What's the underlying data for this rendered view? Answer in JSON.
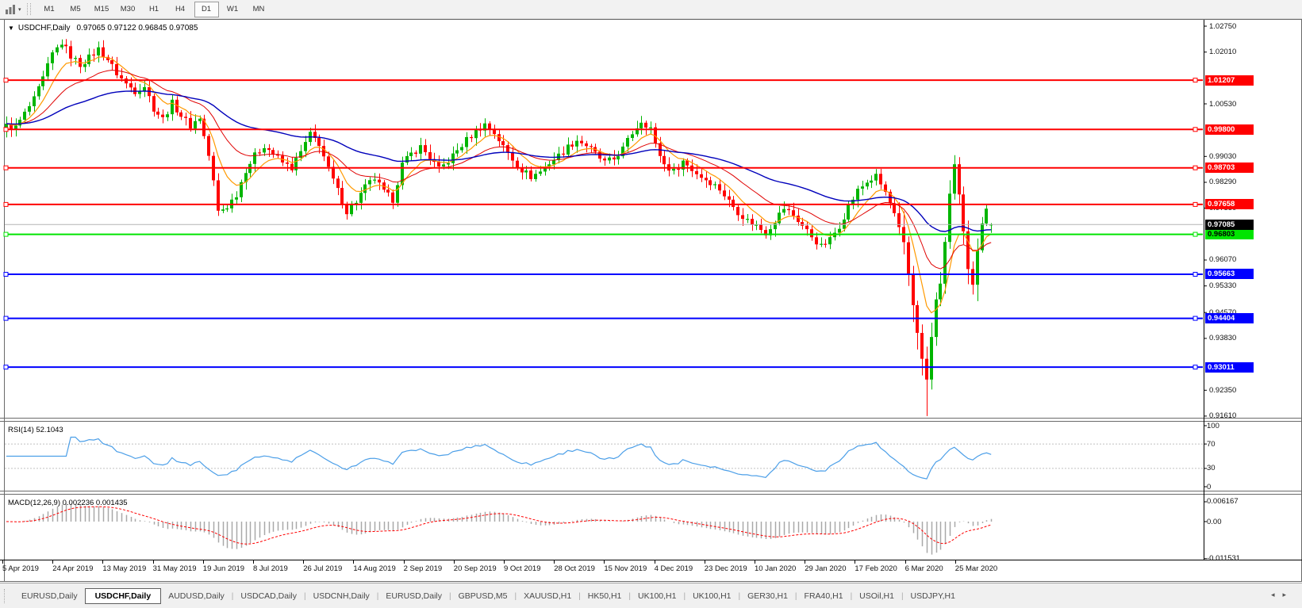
{
  "toolbar": {
    "periods": [
      "M1",
      "M5",
      "M15",
      "M30",
      "H1",
      "H4",
      "D1",
      "W1",
      "MN"
    ],
    "active_period": "D1",
    "periods_icon": "periods-toolbar-icon",
    "caret": "▾"
  },
  "main": {
    "collapse_icon": "▼",
    "title": "USDCHF,Daily",
    "ohlc": "0.97065 0.97122 0.96845 0.97085"
  },
  "panels": {
    "rsi_label": "RSI(14) 52.1043",
    "macd_label": "MACD(12,26,9) 0.002236 0.001435"
  },
  "colors": {
    "candle_up": "#00b500",
    "candle_down": "#ff0000",
    "ma_fast": "#ff9900",
    "ma_mid": "#e00000",
    "ma_slow": "#0000bb",
    "level_red": "#ff0000",
    "level_green": "#00e400",
    "level_blue": "#0000ff",
    "current_line": "#b4b4b4",
    "rsi_line": "#4c9fe8",
    "rsi_grid": "#c0c0c0",
    "macd_hist": "#a8a8a8",
    "macd_signal": "#ff0000"
  },
  "chart_data": {
    "type": "candlestick",
    "symbol": "USDCHF",
    "period": "Daily",
    "last_ohlc": {
      "open": 0.97065,
      "high": 0.97122,
      "low": 0.96845,
      "close": 0.97085
    },
    "bars": 215,
    "price_path_anchors": [
      [
        0,
        0.999
      ],
      [
        2,
        0.9985
      ],
      [
        4,
        1.0025
      ],
      [
        6,
        1.0065
      ],
      [
        8,
        1.0125
      ],
      [
        10,
        1.0195
      ],
      [
        12,
        1.0228
      ],
      [
        14,
        1.019
      ],
      [
        16,
        1.0165
      ],
      [
        18,
        1.0185
      ],
      [
        20,
        1.021
      ],
      [
        22,
        1.018
      ],
      [
        24,
        1.014
      ],
      [
        26,
        1.011
      ],
      [
        28,
        1.009
      ],
      [
        30,
        1.0105
      ],
      [
        32,
        1.004
      ],
      [
        34,
        1.001
      ],
      [
        36,
        1.0055
      ],
      [
        38,
        1.002
      ],
      [
        40,
        0.999
      ],
      [
        42,
        1.0015
      ],
      [
        43,
        0.996
      ],
      [
        44,
        0.9905
      ],
      [
        45,
        0.983
      ],
      [
        46,
        0.9745
      ],
      [
        48,
        0.976
      ],
      [
        50,
        0.9795
      ],
      [
        52,
        0.9865
      ],
      [
        54,
        0.9905
      ],
      [
        56,
        0.9935
      ],
      [
        58,
        0.991
      ],
      [
        60,
        0.9885
      ],
      [
        62,
        0.987
      ],
      [
        64,
        0.9915
      ],
      [
        66,
        0.9965
      ],
      [
        68,
        0.994
      ],
      [
        70,
        0.9865
      ],
      [
        72,
        0.9805
      ],
      [
        74,
        0.9745
      ],
      [
        76,
        0.9775
      ],
      [
        78,
        0.9815
      ],
      [
        80,
        0.984
      ],
      [
        82,
        0.98
      ],
      [
        84,
        0.978
      ],
      [
        86,
        0.988
      ],
      [
        88,
        0.991
      ],
      [
        90,
        0.993
      ],
      [
        92,
        0.99
      ],
      [
        94,
        0.9865
      ],
      [
        96,
        0.989
      ],
      [
        98,
        0.992
      ],
      [
        100,
        0.995
      ],
      [
        102,
        0.9975
      ],
      [
        104,
        0.9995
      ],
      [
        106,
        0.997
      ],
      [
        108,
        0.993
      ],
      [
        110,
        0.9895
      ],
      [
        112,
        0.9865
      ],
      [
        114,
        0.9845
      ],
      [
        116,
        0.986
      ],
      [
        118,
        0.9885
      ],
      [
        120,
        0.9905
      ],
      [
        122,
        0.993
      ],
      [
        124,
        0.995
      ],
      [
        126,
        0.9935
      ],
      [
        128,
        0.991
      ],
      [
        130,
        0.9885
      ],
      [
        132,
        0.9895
      ],
      [
        134,
        0.9925
      ],
      [
        136,
        0.997
      ],
      [
        138,
        1.0005
      ],
      [
        140,
        0.9985
      ],
      [
        141,
        0.9935
      ],
      [
        143,
        0.988
      ],
      [
        145,
        0.986
      ],
      [
        147,
        0.989
      ],
      [
        149,
        0.9865
      ],
      [
        151,
        0.9845
      ],
      [
        153,
        0.983
      ],
      [
        155,
        0.981
      ],
      [
        157,
        0.9775
      ],
      [
        159,
        0.9745
      ],
      [
        161,
        0.972
      ],
      [
        163,
        0.9705
      ],
      [
        165,
        0.9685
      ],
      [
        167,
        0.972
      ],
      [
        169,
        0.9755
      ],
      [
        171,
        0.9735
      ],
      [
        173,
        0.9705
      ],
      [
        175,
        0.9675
      ],
      [
        177,
        0.9645
      ],
      [
        179,
        0.9665
      ],
      [
        181,
        0.9705
      ],
      [
        183,
        0.976
      ],
      [
        185,
        0.9805
      ],
      [
        187,
        0.983
      ],
      [
        189,
        0.9845
      ],
      [
        191,
        0.98
      ],
      [
        193,
        0.9735
      ],
      [
        195,
        0.965
      ],
      [
        196,
        0.9565
      ],
      [
        197,
        0.948
      ],
      [
        198,
        0.9405
      ],
      [
        199,
        0.932
      ],
      [
        200,
        0.9265
      ],
      [
        201,
        0.9385
      ],
      [
        202,
        0.949
      ],
      [
        203,
        0.9545
      ],
      [
        204,
        0.965
      ],
      [
        205,
        0.98
      ],
      [
        206,
        0.988
      ],
      [
        207,
        0.979
      ],
      [
        208,
        0.968
      ],
      [
        209,
        0.9575
      ],
      [
        210,
        0.953
      ],
      [
        211,
        0.964
      ],
      [
        212,
        0.972
      ],
      [
        213,
        0.976
      ],
      [
        214,
        0.97085
      ]
    ],
    "spike_low": {
      "bar": 200,
      "price": 0.9161
    },
    "levels": {
      "red": [
        "1.01207",
        "0.99800",
        "0.98703",
        "0.97658"
      ],
      "green": [
        "0.96803"
      ],
      "blue": [
        "0.95663",
        "0.94404",
        "0.93011"
      ]
    },
    "current_price": "0.97085",
    "price_ticks": [
      "1.02750",
      "1.02010",
      "1.00530",
      "0.99030",
      "0.98290",
      "0.97550",
      "0.96070",
      "0.95330",
      "0.94570",
      "0.93830",
      "0.92350",
      "0.91610"
    ],
    "date_ticks": [
      "5 Apr 2019",
      "24 Apr 2019",
      "13 May 2019",
      "31 May 2019",
      "19 Jun 2019",
      "8 Jul 2019",
      "26 Jul 2019",
      "14 Aug 2019",
      "2 Sep 2019",
      "20 Sep 2019",
      "9 Oct 2019",
      "28 Oct 2019",
      "15 Nov 2019",
      "4 Dec 2019",
      "23 Dec 2019",
      "10 Jan 2020",
      "29 Jan 2020",
      "17 Feb 2020",
      "6 Mar 2020",
      "25 Mar 2020"
    ],
    "moving_averages": [
      {
        "name": "fast",
        "period": 8
      },
      {
        "name": "mid",
        "period": 21
      },
      {
        "name": "slow",
        "period": 55
      }
    ],
    "rsi": {
      "period": 14,
      "value": "52.1043",
      "grid_levels": [
        70,
        30
      ],
      "axis": [
        "100",
        "70",
        "30",
        "0"
      ]
    },
    "macd": {
      "fast": 12,
      "slow": 26,
      "signal": 9,
      "macd_value": "0.002236",
      "signal_value": "0.001435",
      "axis": [
        "0.006167",
        "0.00",
        "-0.011531"
      ]
    }
  },
  "tabs": {
    "items": [
      "EURUSD,Daily",
      "USDCHF,Daily",
      "AUDUSD,Daily",
      "USDCAD,Daily",
      "USDCNH,Daily",
      "EURUSD,Daily",
      "GBPUSD,M5",
      "XAUUSD,H1",
      "HK50,H1",
      "UK100,H1",
      "UK100,H1",
      "GER30,H1",
      "FRA40,H1",
      "USOil,H1",
      "USDJPY,H1"
    ],
    "active_index": 1,
    "scroll_left": "◂",
    "scroll_right": "▸"
  }
}
